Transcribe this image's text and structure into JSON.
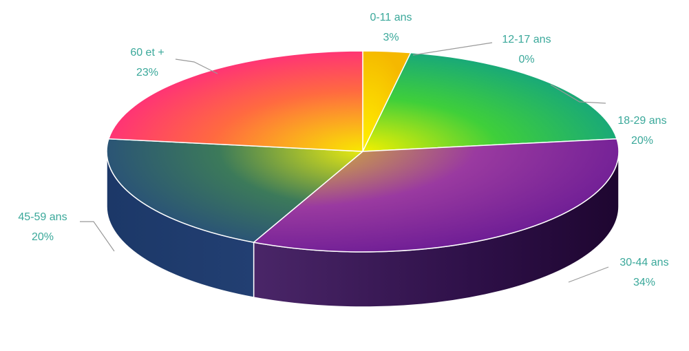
{
  "chart_data": {
    "type": "pie",
    "title": "",
    "categories": [
      "0-11 ans",
      "12-17 ans",
      "18-29 ans",
      "30-44 ans",
      "45-59 ans",
      "60 et +"
    ],
    "values": [
      3,
      0,
      20,
      34,
      20,
      23
    ],
    "value_labels": [
      "3%",
      "0%",
      "20%",
      "34%",
      "20%",
      "23%"
    ],
    "label_color": "#3aa89a",
    "leader_color": "#999999",
    "style": "3d-exploded-gradient",
    "slice_colors": [
      "#f5c000",
      "#f2e000",
      "#0aa090",
      "#6a1a9a",
      "#2a4d8a",
      "#ff1d8e"
    ]
  }
}
